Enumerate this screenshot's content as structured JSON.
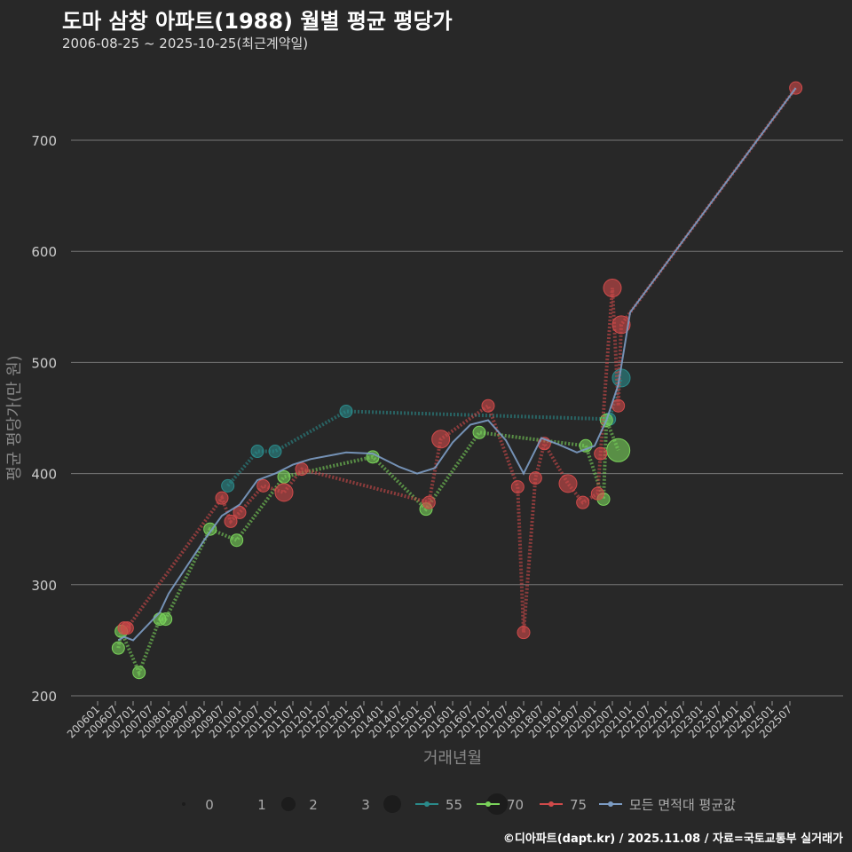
{
  "title": "도마 삼창 아파트(1988) 월별 평균 평당가",
  "subtitle": "2006-08-25 ~ 2025-10-25(최근계약일)",
  "credit": "©디아파트(dapt.kr) / 2025.11.08 / 자료=국토교통부 실거래가",
  "chart_data": {
    "type": "scatter",
    "xlabel": "거래년월",
    "ylabel": "평균 평당가(만 원)",
    "ylim": [
      200,
      750
    ],
    "yticks": [
      200,
      300,
      400,
      500,
      600,
      700
    ],
    "xticks": [
      "200601",
      "200607",
      "200701",
      "200707",
      "200801",
      "200807",
      "200901",
      "200907",
      "201001",
      "201007",
      "201101",
      "201107",
      "201201",
      "201207",
      "201301",
      "201307",
      "201401",
      "201407",
      "201501",
      "201507",
      "201601",
      "201607",
      "201701",
      "201707",
      "201801",
      "201807",
      "201901",
      "201907",
      "202001",
      "202007",
      "202101",
      "202107",
      "202201",
      "202207",
      "202301",
      "202307",
      "202401",
      "202407",
      "202501",
      "202507"
    ],
    "size_legend": [
      "0",
      "1",
      "2",
      "3"
    ],
    "series": [
      {
        "name": "55",
        "color": "#2a8a8a",
        "points": [
          [
            "200909",
            389,
            1
          ],
          [
            "201007",
            420,
            1
          ],
          [
            "201101",
            420,
            1
          ],
          [
            "201301",
            456,
            1
          ],
          [
            "202006",
            449,
            1
          ],
          [
            "202010",
            486,
            2
          ]
        ]
      },
      {
        "name": "70",
        "color": "#7ad35a",
        "points": [
          [
            "200608",
            243,
            1
          ],
          [
            "200609",
            258,
            1
          ],
          [
            "200703",
            221,
            1
          ],
          [
            "200710",
            269,
            1
          ],
          [
            "200712",
            269,
            1
          ],
          [
            "200903",
            350,
            1
          ],
          [
            "200912",
            340,
            1
          ],
          [
            "201104",
            397,
            1
          ],
          [
            "201310",
            415,
            1
          ],
          [
            "201504",
            368,
            1
          ],
          [
            "201610",
            437,
            1
          ],
          [
            "201910",
            425,
            1
          ],
          [
            "202004",
            377,
            1
          ],
          [
            "202005",
            448,
            1
          ],
          [
            "202009",
            421,
            3
          ]
        ]
      },
      {
        "name": "75",
        "color": "#d04a4a",
        "points": [
          [
            "200610",
            261,
            1
          ],
          [
            "200611",
            261,
            1
          ],
          [
            "200907",
            378,
            1
          ],
          [
            "200910",
            357,
            1
          ],
          [
            "201001",
            365,
            1
          ],
          [
            "201009",
            389,
            1
          ],
          [
            "201104",
            383,
            2
          ],
          [
            "201110",
            404,
            1
          ],
          [
            "201505",
            374,
            1
          ],
          [
            "201509",
            431,
            2
          ],
          [
            "201701",
            461,
            1
          ],
          [
            "201711",
            388,
            1
          ],
          [
            "201801",
            257,
            1
          ],
          [
            "201805",
            396,
            1
          ],
          [
            "201808",
            427,
            1
          ],
          [
            "201904",
            391,
            2
          ],
          [
            "201909",
            374,
            1
          ],
          [
            "202002",
            382,
            1
          ],
          [
            "202003",
            418,
            1
          ],
          [
            "202007",
            567,
            2
          ],
          [
            "202009",
            461,
            1
          ],
          [
            "202010",
            534,
            2
          ],
          [
            "202509",
            747,
            1
          ]
        ]
      },
      {
        "name": "모든 면적대 평균값",
        "color": "#7c9cc4",
        "points": [
          [
            "200608",
            250,
            0
          ],
          [
            "200610",
            253,
            0
          ],
          [
            "200701",
            250,
            0
          ],
          [
            "200710",
            275,
            0
          ],
          [
            "200801",
            292,
            0
          ],
          [
            "200901",
            340,
            0
          ],
          [
            "200907",
            362,
            0
          ],
          [
            "201001",
            372,
            0
          ],
          [
            "201007",
            394,
            0
          ],
          [
            "201101",
            400,
            0
          ],
          [
            "201107",
            408,
            0
          ],
          [
            "201201",
            413,
            0
          ],
          [
            "201301",
            419,
            0
          ],
          [
            "201310",
            418,
            0
          ],
          [
            "201407",
            406,
            0
          ],
          [
            "201501",
            400,
            0
          ],
          [
            "201507",
            405,
            0
          ],
          [
            "201601",
            428,
            0
          ],
          [
            "201607",
            444,
            0
          ],
          [
            "201701",
            448,
            0
          ],
          [
            "201707",
            430,
            0
          ],
          [
            "201801",
            400,
            0
          ],
          [
            "201807",
            432,
            0
          ],
          [
            "201901",
            426,
            0
          ],
          [
            "201907",
            419,
            0
          ],
          [
            "202001",
            425,
            0
          ],
          [
            "202005",
            448,
            0
          ],
          [
            "202009",
            480,
            0
          ],
          [
            "202101",
            545,
            0
          ],
          [
            "202509",
            747,
            0
          ]
        ]
      }
    ]
  }
}
